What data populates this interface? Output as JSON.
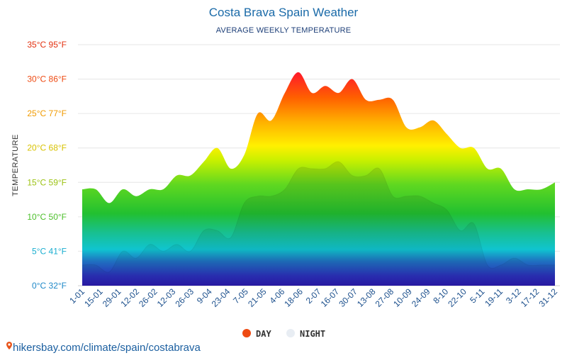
{
  "chart_data": {
    "type": "area",
    "title": "Costa Brava Spain Weather",
    "subtitle": "AVERAGE WEEKLY TEMPERATURE",
    "ylabel": "TEMPERATURE",
    "xlabel": "",
    "ylim": [
      0,
      35
    ],
    "grid": true,
    "legend": "bottom-center",
    "y_ticks": [
      {
        "value": 0,
        "label": "0°C 32°F",
        "color": "#1e88c8"
      },
      {
        "value": 5,
        "label": "5°C 41°F",
        "color": "#1aaed0"
      },
      {
        "value": 10,
        "label": "10°C 50°F",
        "color": "#4cbf2a"
      },
      {
        "value": 15,
        "label": "15°C 59°F",
        "color": "#9cc213"
      },
      {
        "value": 20,
        "label": "20°C 68°F",
        "color": "#d8c200"
      },
      {
        "value": 25,
        "label": "25°C 77°F",
        "color": "#f09a00"
      },
      {
        "value": 30,
        "label": "30°C 86°F",
        "color": "#ee4a12"
      },
      {
        "value": 35,
        "label": "35°C 95°F",
        "color": "#e3300f"
      }
    ],
    "x_labels": [
      "1-01",
      "15-01",
      "29-01",
      "12-02",
      "26-02",
      "12-03",
      "26-03",
      "9-04",
      "23-04",
      "7-05",
      "21-05",
      "4-06",
      "18-06",
      "2-07",
      "16-07",
      "30-07",
      "13-08",
      "27-08",
      "10-09",
      "24-09",
      "8-10",
      "22-10",
      "5-11",
      "19-11",
      "3-12",
      "17-12",
      "31-12"
    ],
    "series": [
      {
        "name": "DAY",
        "color": "#ee4a12",
        "values": [
          14,
          14,
          12,
          14,
          13,
          14,
          14,
          16,
          16,
          18,
          20,
          17,
          19,
          25,
          24,
          28,
          31,
          28,
          29,
          28,
          30,
          27,
          27,
          27,
          23,
          23,
          24,
          22,
          20,
          20,
          17,
          17,
          14,
          14,
          14,
          15
        ]
      },
      {
        "name": "NIGHT",
        "color": "#e8edf3",
        "values": [
          3,
          3,
          2,
          5,
          4,
          6,
          5,
          6,
          5,
          8,
          8,
          7,
          12,
          13,
          13,
          14,
          17,
          17,
          17,
          18,
          16,
          16,
          17,
          13,
          13,
          13,
          12,
          11,
          8,
          9,
          3,
          3,
          4,
          3,
          3,
          3
        ]
      }
    ],
    "legend_items": [
      {
        "name": "DAY",
        "color": "#ee4a12"
      },
      {
        "name": "NIGHT",
        "color": "#e8edf3"
      }
    ]
  },
  "footer": {
    "source_text": "hikersbay.com/climate/spain/costabrava",
    "icon": "map-pin-icon",
    "icon_color": "#e8541a"
  }
}
